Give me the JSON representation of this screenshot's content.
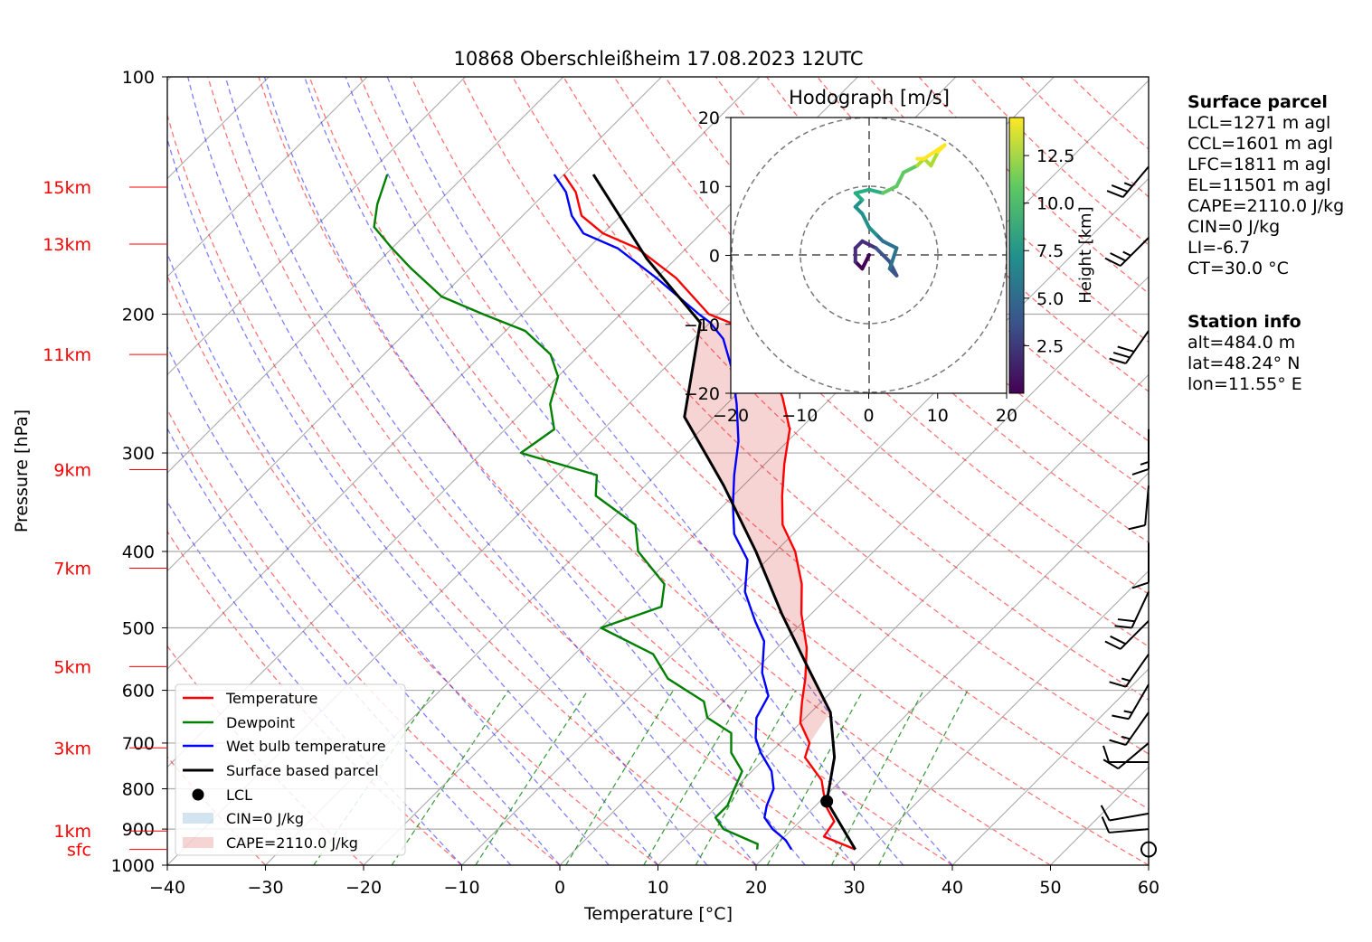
{
  "chart_data": {
    "type": "line",
    "title": "10868 Oberschleißheim 17.08.2023 12UTC",
    "xlabel": "Temperature [°C]",
    "ylabel": "Pressure [hPa]",
    "x_ticks": [
      "−40",
      "−30",
      "−20",
      "−10",
      "0",
      "10",
      "20",
      "30",
      "40",
      "50",
      "60"
    ],
    "y_ticks": [
      {
        "p": 100,
        "label": "100"
      },
      {
        "p": 200,
        "label": "200"
      },
      {
        "p": 300,
        "label": "300"
      },
      {
        "p": 400,
        "label": "400"
      },
      {
        "p": 500,
        "label": "500"
      },
      {
        "p": 600,
        "label": "600"
      },
      {
        "p": 700,
        "label": "700"
      },
      {
        "p": 800,
        "label": "800"
      },
      {
        "p": 900,
        "label": "900"
      },
      {
        "p": 1000,
        "label": "1000"
      }
    ],
    "xlim": [
      -40,
      60
    ],
    "ylim": [
      1000,
      100
    ],
    "y_scale": "log",
    "skew": true,
    "grid": true,
    "height_marks": [
      {
        "label": "15km",
        "p": 138
      },
      {
        "label": "13km",
        "p": 163
      },
      {
        "label": "11km",
        "p": 225
      },
      {
        "label": "9km",
        "p": 315
      },
      {
        "label": "7km",
        "p": 420
      },
      {
        "label": "5km",
        "p": 560
      },
      {
        "label": "3km",
        "p": 710
      },
      {
        "label": "1km",
        "p": 905
      },
      {
        "label": "sfc",
        "p": 955
      }
    ],
    "legend_position": "lower-left",
    "series": [
      {
        "name": "Temperature",
        "color": "#ff0000",
        "points": [
          [
            28.5,
            955
          ],
          [
            24,
            920
          ],
          [
            23.5,
            880
          ],
          [
            21,
            840
          ],
          [
            18,
            780
          ],
          [
            14,
            730
          ],
          [
            13,
            700
          ],
          [
            10,
            660
          ],
          [
            8,
            620
          ],
          [
            6,
            580
          ],
          [
            3,
            530
          ],
          [
            -1,
            480
          ],
          [
            -4,
            440
          ],
          [
            -8,
            400
          ],
          [
            -12,
            370
          ],
          [
            -15,
            340
          ],
          [
            -18,
            310
          ],
          [
            -21,
            280
          ],
          [
            -25,
            255
          ],
          [
            -30,
            230
          ],
          [
            -34,
            210
          ],
          [
            -38,
            205
          ],
          [
            -41,
            200
          ],
          [
            -48,
            180
          ],
          [
            -55,
            165
          ],
          [
            -60,
            158
          ],
          [
            -64,
            150
          ],
          [
            -67,
            140
          ],
          [
            -70,
            133
          ]
        ]
      },
      {
        "name": "Dewpoint",
        "color": "#008000",
        "points": [
          [
            18.5,
            955
          ],
          [
            18,
            940
          ],
          [
            13,
            900
          ],
          [
            11,
            870
          ],
          [
            11,
            840
          ],
          [
            10,
            800
          ],
          [
            9,
            760
          ],
          [
            6,
            720
          ],
          [
            4,
            680
          ],
          [
            0,
            650
          ],
          [
            -2,
            620
          ],
          [
            -8,
            580
          ],
          [
            -12,
            540
          ],
          [
            -20,
            500
          ],
          [
            -16,
            470
          ],
          [
            -18,
            440
          ],
          [
            -24,
            400
          ],
          [
            -27,
            370
          ],
          [
            -34,
            340
          ],
          [
            -36,
            320
          ],
          [
            -46,
            300
          ],
          [
            -45,
            280
          ],
          [
            -48,
            260
          ],
          [
            -50,
            240
          ],
          [
            -53,
            225
          ],
          [
            -58,
            210
          ],
          [
            -64,
            200
          ],
          [
            -70,
            190
          ],
          [
            -76,
            175
          ],
          [
            -80,
            165
          ],
          [
            -84,
            155
          ],
          [
            -86,
            145
          ],
          [
            -88,
            133
          ]
        ]
      },
      {
        "name": "Wet bulb temperature",
        "color": "#0000ff",
        "points": [
          [
            22,
            955
          ],
          [
            20.5,
            930
          ],
          [
            18,
            900
          ],
          [
            16,
            870
          ],
          [
            15,
            840
          ],
          [
            14,
            800
          ],
          [
            12,
            760
          ],
          [
            9,
            720
          ],
          [
            7,
            690
          ],
          [
            5,
            650
          ],
          [
            4,
            610
          ],
          [
            1,
            570
          ],
          [
            -2,
            520
          ],
          [
            -5,
            490
          ],
          [
            -9,
            450
          ],
          [
            -12,
            410
          ],
          [
            -16,
            380
          ],
          [
            -19,
            350
          ],
          [
            -22,
            320
          ],
          [
            -25,
            290
          ],
          [
            -29,
            260
          ],
          [
            -33,
            235
          ],
          [
            -37,
            215
          ],
          [
            -40,
            205
          ],
          [
            -42,
            200
          ],
          [
            -50,
            180
          ],
          [
            -57,
            165
          ],
          [
            -62,
            158
          ],
          [
            -65,
            150
          ],
          [
            -68,
            140
          ],
          [
            -71,
            133
          ]
        ]
      },
      {
        "name": "Surface based parcel",
        "color": "#000000",
        "points": [
          [
            28.5,
            955
          ],
          [
            20.7,
            830
          ],
          [
            17,
            730
          ],
          [
            12,
            640
          ],
          [
            5,
            560
          ],
          [
            -3,
            480
          ],
          [
            -12,
            400
          ],
          [
            -22,
            330
          ],
          [
            -33,
            270
          ],
          [
            -41,
            205
          ],
          [
            -53,
            170
          ],
          [
            -67,
            133
          ]
        ]
      }
    ],
    "lcl": {
      "name": "LCL",
      "T": 20.7,
      "p": 830
    },
    "cin_label": "CIN=0 J/kg",
    "cape_label": "CAPE=2110.0 J/kg",
    "hodograph": {
      "title": "Hodograph [m/s]",
      "xlim": [
        -20,
        20
      ],
      "ylim": [
        -20,
        20
      ],
      "x_ticks": [
        "−20",
        "−10",
        "0",
        "10",
        "20"
      ],
      "y_ticks": [
        "20",
        "10",
        "0",
        "−10",
        "−20"
      ],
      "colorbar_label": "Height [km]",
      "colorbar_ticks": [
        "2.5",
        "5.0",
        "7.5",
        "10.0",
        "12.5"
      ],
      "points": [
        [
          0,
          0,
          0.5
        ],
        [
          -1,
          -2,
          1.0
        ],
        [
          -2,
          -1,
          1.5
        ],
        [
          -2,
          1,
          2.0
        ],
        [
          -1,
          2,
          2.5
        ],
        [
          1,
          1,
          3.0
        ],
        [
          3,
          -1,
          3.5
        ],
        [
          4,
          -3,
          4.0
        ],
        [
          3,
          -2,
          4.5
        ],
        [
          4,
          1,
          5.0
        ],
        [
          2,
          2,
          5.5
        ],
        [
          1,
          3,
          6.0
        ],
        [
          0,
          4,
          6.5
        ],
        [
          -1,
          6,
          7.0
        ],
        [
          -2,
          7,
          7.5
        ],
        [
          -1,
          8,
          8.0
        ],
        [
          -2,
          9,
          8.5
        ],
        [
          0,
          9.5,
          9.0
        ],
        [
          2,
          9,
          9.5
        ],
        [
          4,
          10,
          10.0
        ],
        [
          5,
          12,
          10.5
        ],
        [
          7,
          13,
          11.0
        ],
        [
          8,
          14,
          11.5
        ],
        [
          9,
          13,
          12.0
        ],
        [
          10,
          15,
          12.5
        ],
        [
          11,
          16,
          13.0
        ],
        [
          8,
          14,
          13.5
        ],
        [
          7,
          14,
          14.0
        ]
      ]
    },
    "wind_barbs": [
      {
        "p": 130,
        "speed_kt": 25,
        "dir_deg": 220
      },
      {
        "p": 160,
        "speed_kt": 25,
        "dir_deg": 225
      },
      {
        "p": 210,
        "speed_kt": 30,
        "dir_deg": 215
      },
      {
        "p": 280,
        "speed_kt": 15,
        "dir_deg": 180
      },
      {
        "p": 330,
        "speed_kt": 10,
        "dir_deg": 185
      },
      {
        "p": 390,
        "speed_kt": 10,
        "dir_deg": 180
      },
      {
        "p": 450,
        "speed_kt": 20,
        "dir_deg": 205
      },
      {
        "p": 490,
        "speed_kt": 20,
        "dir_deg": 225
      },
      {
        "p": 540,
        "speed_kt": 15,
        "dir_deg": 215
      },
      {
        "p": 590,
        "speed_kt": 15,
        "dir_deg": 210
      },
      {
        "p": 640,
        "speed_kt": 15,
        "dir_deg": 215
      },
      {
        "p": 700,
        "speed_kt": 10,
        "dir_deg": 230
      },
      {
        "p": 740,
        "speed_kt": 10,
        "dir_deg": 270
      },
      {
        "p": 860,
        "speed_kt": 10,
        "dir_deg": 260
      },
      {
        "p": 900,
        "speed_kt": 10,
        "dir_deg": 265
      },
      {
        "p": 955,
        "speed_kt": 0,
        "dir_deg": 0
      }
    ]
  },
  "info": {
    "surface_parcel": {
      "heading": "Surface parcel",
      "lines": [
        "LCL=1271 m agl",
        "CCL=1601 m agl",
        "LFC=1811 m agl",
        "EL=11501 m agl",
        "CAPE=2110.0 J/kg",
        "CIN=0 J/kg",
        "LI=-6.7",
        "CT=30.0 °C"
      ]
    },
    "station_info": {
      "heading": "Station info",
      "lines": [
        "alt=484.0 m",
        "lat=48.24° N",
        "lon=11.55° E"
      ]
    }
  }
}
